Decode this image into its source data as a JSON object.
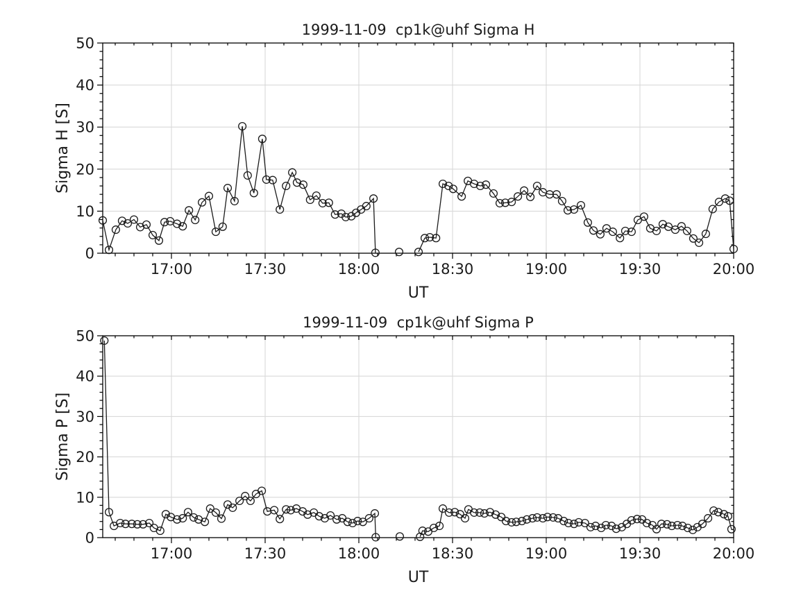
{
  "figure": {
    "background": "#ffffff",
    "text_color": "#1a1a1a",
    "grid_color": "#d9d9d9",
    "line_color": "#1a1a1a"
  },
  "chart_data": [
    {
      "type": "line",
      "title": "1999-11-09  cp1k@uhf Sigma H",
      "xlabel": "UT",
      "ylabel": "Sigma H [S]",
      "ylim": [
        0,
        50
      ],
      "yticks": [
        0,
        10,
        20,
        30,
        40,
        50
      ],
      "xlim_minutes": [
        0,
        202
      ],
      "x_start_time": "16:38",
      "x_end_time": "20:00",
      "xtick_minutes": [
        22,
        52,
        82,
        112,
        142,
        172,
        202
      ],
      "xtick_labels": [
        "17:00",
        "17:30",
        "18:00",
        "18:30",
        "19:00",
        "19:30",
        "20:00"
      ],
      "minor_x_step": 6,
      "minor_y_step": 2,
      "grid": true,
      "marker": "open-circle",
      "segments": [
        [
          [
            0,
            7.8
          ],
          [
            2,
            0.8
          ],
          [
            4.2,
            5.6
          ],
          [
            6.2,
            7.7
          ],
          [
            8,
            7.1
          ],
          [
            10,
            8
          ],
          [
            12,
            6.2
          ],
          [
            14,
            6.8
          ],
          [
            16,
            4.3
          ],
          [
            18,
            3
          ],
          [
            19.8,
            7.4
          ],
          [
            21.6,
            7.6
          ],
          [
            23.8,
            7
          ],
          [
            25.6,
            6.4
          ],
          [
            27.6,
            10.2
          ],
          [
            29.6,
            7.9
          ],
          [
            31.8,
            12.1
          ],
          [
            34,
            13.6
          ],
          [
            36.2,
            5.1
          ],
          [
            38.4,
            6.3
          ],
          [
            40,
            15.5
          ],
          [
            42.2,
            12.4
          ],
          [
            44.7,
            30.2
          ],
          [
            46.4,
            18.5
          ],
          [
            48.4,
            14.3
          ],
          [
            51.1,
            27.2
          ],
          [
            52.4,
            17.5
          ],
          [
            54.4,
            17.4
          ],
          [
            56.7,
            10.4
          ],
          [
            58.7,
            16
          ],
          [
            60.7,
            19.2
          ],
          [
            62.2,
            16.8
          ],
          [
            64.2,
            16.3
          ],
          [
            66.4,
            12.7
          ],
          [
            68.4,
            13.7
          ],
          [
            70.4,
            11.9
          ],
          [
            72.4,
            12
          ],
          [
            74.4,
            9.2
          ],
          [
            76.4,
            9.4
          ],
          [
            77.8,
            8.6
          ],
          [
            79.6,
            8.8
          ],
          [
            81.1,
            9.6
          ],
          [
            82.7,
            10.4
          ],
          [
            84.4,
            11.2
          ],
          [
            86.7,
            13
          ],
          [
            87.3,
            0.1
          ]
        ],
        [
          [
            94.9,
            0.3
          ]
        ],
        [
          [
            101.1,
            0.3
          ],
          [
            103.1,
            3.6
          ],
          [
            104.7,
            3.8
          ],
          [
            106.7,
            3.6
          ],
          [
            108.9,
            16.5
          ],
          [
            110.7,
            16
          ],
          [
            112.2,
            15.3
          ],
          [
            114.9,
            13.5
          ],
          [
            116.9,
            17.2
          ],
          [
            118.9,
            16.5
          ],
          [
            120.9,
            16
          ],
          [
            122.7,
            16.3
          ],
          [
            125.1,
            14.2
          ],
          [
            127.1,
            11.9
          ],
          [
            128.9,
            12
          ],
          [
            130.9,
            12.2
          ],
          [
            132.9,
            13.5
          ],
          [
            134.9,
            14.9
          ],
          [
            136.9,
            13.4
          ],
          [
            139.1,
            16
          ],
          [
            140.9,
            14.5
          ],
          [
            143.1,
            14
          ],
          [
            145.3,
            14
          ],
          [
            147.1,
            12.4
          ],
          [
            148.9,
            10.2
          ],
          [
            150.9,
            10.4
          ],
          [
            153.1,
            11.4
          ],
          [
            155.3,
            7.3
          ],
          [
            157.1,
            5.4
          ],
          [
            159.3,
            4.5
          ],
          [
            161.3,
            5.9
          ],
          [
            163.3,
            5.1
          ],
          [
            165.6,
            3.6
          ],
          [
            167.3,
            5.3
          ],
          [
            169.3,
            5.1
          ],
          [
            171.3,
            7.9
          ],
          [
            173.3,
            8.7
          ],
          [
            175.3,
            5.9
          ],
          [
            177.3,
            5.3
          ],
          [
            179.3,
            6.9
          ],
          [
            181.1,
            6.3
          ],
          [
            183.3,
            5.6
          ],
          [
            185.3,
            6.4
          ],
          [
            187.1,
            5.3
          ],
          [
            189.1,
            3.5
          ],
          [
            190.9,
            2.5
          ],
          [
            193.1,
            4.6
          ],
          [
            195.3,
            10.5
          ],
          [
            197.3,
            12.2
          ],
          [
            199.3,
            13
          ],
          [
            200.7,
            12.5
          ],
          [
            202,
            1
          ]
        ]
      ]
    },
    {
      "type": "line",
      "title": "1999-11-09  cp1k@uhf Sigma P",
      "xlabel": "UT",
      "ylabel": "Sigma P [S]",
      "ylim": [
        0,
        50
      ],
      "yticks": [
        0,
        10,
        20,
        30,
        40,
        50
      ],
      "xlim_minutes": [
        0,
        202
      ],
      "x_start_time": "16:38",
      "x_end_time": "20:00",
      "xtick_minutes": [
        22,
        52,
        82,
        112,
        142,
        172,
        202
      ],
      "xtick_labels": [
        "17:00",
        "17:30",
        "18:00",
        "18:30",
        "19:00",
        "19:30",
        "20:00"
      ],
      "minor_x_step": 6,
      "minor_y_step": 2,
      "grid": true,
      "marker": "open-circle",
      "segments": [
        [
          [
            0.5,
            48.8
          ],
          [
            2,
            6.3
          ],
          [
            3.6,
            2.9
          ],
          [
            5.6,
            3.6
          ],
          [
            7.3,
            3.4
          ],
          [
            9.3,
            3.4
          ],
          [
            11.1,
            3.3
          ],
          [
            12.9,
            3.3
          ],
          [
            14.9,
            3.6
          ],
          [
            16.4,
            2.4
          ],
          [
            18.4,
            1.7
          ],
          [
            20.2,
            5.8
          ],
          [
            21.8,
            5.1
          ],
          [
            23.8,
            4.5
          ],
          [
            25.6,
            4.8
          ],
          [
            27.3,
            6.3
          ],
          [
            29.1,
            5
          ],
          [
            30.7,
            4.5
          ],
          [
            32.7,
            3.9
          ],
          [
            34.4,
            7.2
          ],
          [
            36.2,
            6.2
          ],
          [
            38,
            4.7
          ],
          [
            40,
            8.2
          ],
          [
            41.6,
            7.4
          ],
          [
            43.8,
            9.1
          ],
          [
            45.6,
            10.3
          ],
          [
            47.3,
            9.1
          ],
          [
            49.1,
            10.8
          ],
          [
            50.9,
            11.6
          ],
          [
            52.7,
            6.5
          ],
          [
            54.9,
            6.8
          ],
          [
            56.7,
            4.6
          ],
          [
            58.7,
            7
          ],
          [
            60.2,
            6.8
          ],
          [
            62,
            7.2
          ],
          [
            64,
            6.5
          ],
          [
            65.6,
            5.7
          ],
          [
            67.6,
            6.2
          ],
          [
            69.3,
            5.3
          ],
          [
            71.1,
            4.8
          ],
          [
            72.9,
            5.5
          ],
          [
            74.9,
            4.5
          ],
          [
            76.7,
            4.8
          ],
          [
            78.4,
            3.9
          ],
          [
            80,
            3.6
          ],
          [
            81.6,
            4.1
          ],
          [
            83.3,
            3.9
          ],
          [
            85.3,
            4.8
          ],
          [
            87.1,
            6
          ],
          [
            87.4,
            0.1
          ]
        ],
        [
          [
            95.1,
            0.3
          ]
        ],
        [
          [
            101.6,
            0.2
          ],
          [
            102.4,
            1.7
          ],
          [
            104.2,
            1.5
          ],
          [
            106,
            2.4
          ],
          [
            107.8,
            2.9
          ],
          [
            108.9,
            7.2
          ],
          [
            110.9,
            6.2
          ],
          [
            112.7,
            6.3
          ],
          [
            114.4,
            5.8
          ],
          [
            116,
            4.8
          ],
          [
            117.1,
            7
          ],
          [
            118.9,
            6.2
          ],
          [
            120.7,
            6.2
          ],
          [
            122.2,
            6
          ],
          [
            124,
            6.3
          ],
          [
            125.8,
            5.7
          ],
          [
            127.6,
            5.1
          ],
          [
            129.1,
            4.1
          ],
          [
            130.9,
            3.8
          ],
          [
            132.4,
            3.9
          ],
          [
            134.2,
            4.1
          ],
          [
            135.8,
            4.5
          ],
          [
            137.6,
            4.8
          ],
          [
            139.1,
            5
          ],
          [
            140.9,
            4.8
          ],
          [
            142.4,
            5.1
          ],
          [
            144.2,
            5
          ],
          [
            145.8,
            4.8
          ],
          [
            147.6,
            4.1
          ],
          [
            149.1,
            3.6
          ],
          [
            150.9,
            3.4
          ],
          [
            152.4,
            3.8
          ],
          [
            154.4,
            3.6
          ],
          [
            156.2,
            2.6
          ],
          [
            157.8,
            2.9
          ],
          [
            159.6,
            2.4
          ],
          [
            161.1,
            3.1
          ],
          [
            162.9,
            2.9
          ],
          [
            164.4,
            2.2
          ],
          [
            166.2,
            2.6
          ],
          [
            167.8,
            3.4
          ],
          [
            169.3,
            4.3
          ],
          [
            171.1,
            4.6
          ],
          [
            172.7,
            4.5
          ],
          [
            174.2,
            3.6
          ],
          [
            176,
            3.1
          ],
          [
            177.3,
            2.1
          ],
          [
            178.9,
            3.4
          ],
          [
            180.7,
            3.3
          ],
          [
            182.2,
            2.9
          ],
          [
            184,
            3.1
          ],
          [
            185.6,
            2.9
          ],
          [
            187.3,
            2.4
          ],
          [
            188.9,
            1.9
          ],
          [
            190.4,
            2.6
          ],
          [
            192,
            3.4
          ],
          [
            193.8,
            4.8
          ],
          [
            195.6,
            6.7
          ],
          [
            197.1,
            6.3
          ],
          [
            198.9,
            5.8
          ],
          [
            200.2,
            5.3
          ],
          [
            201.3,
            2.1
          ]
        ]
      ]
    }
  ]
}
